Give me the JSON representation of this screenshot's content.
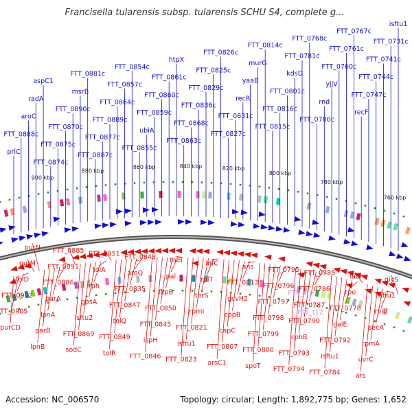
{
  "title": "Francisella tularensis subsp. tularensis SCHU S4, complete g...",
  "accession": "Accession: NC_006570",
  "summary": "Topology: circular; Length: 1,892,775 bp; Genes: 1,652",
  "colors": {
    "forward": "#1010cc",
    "reverse": "#dd1111",
    "rna": "#dd88dd",
    "backbone": "#777777",
    "tick": "#228822"
  },
  "scale_labels": [
    "760 kbp",
    "780 kbp",
    "800 kbp",
    "820 kbp",
    "840 kbp",
    "860 kbp",
    "880 kbp",
    "900 kbp"
  ],
  "forward_genes": [
    "isftu1",
    "FTT_0731c",
    "FTT_0741c",
    "FTT_0744c",
    "FTT_0747c",
    "recF",
    "FTT_0767c",
    "FTT_0761c",
    "FTT_0760c",
    "yjjV",
    "rnd",
    "FTT_0780c",
    "FTT_0768c",
    "FTT_0781c",
    "kdsD",
    "FTT_0801c",
    "FTT_0816c",
    "FTT_0815c",
    "FTT_0814c",
    "murG",
    "yaaB",
    "recR",
    "FTT_0831c",
    "FTT_0827c",
    "FTT_0826c",
    "FTT_0825c",
    "FTT_0829c",
    "FTT_0836c",
    "FTT_0868c",
    "FTT_0863c",
    "htpX",
    "FTT_0861c",
    "FTT_0860c",
    "FTT_0859c",
    "ubiA",
    "FTT_0855c",
    "FTT_0854c",
    "FTT_0857c",
    "FTT_0864c",
    "FTT_0889c",
    "FTT_0877c",
    "FTT_0887c",
    "FTT_0881c",
    "msrB",
    "FTT_0890c",
    "FTT_0870c",
    "FTT_0875c",
    "FTT_0874c",
    "aspC1",
    "radA",
    "aroC",
    "FTT_0888c",
    "prlC"
  ],
  "reverse_genes": [
    "glyS",
    "isftu1",
    "rplU",
    "secA",
    "rpmA",
    "uvrC",
    "ars",
    "fabI",
    "rpe",
    "FTT_0778",
    "galE",
    "FTT_0792",
    "isftu1",
    "FTT_0784",
    "FTT_0785",
    "FTT_0786",
    "FTT_0787",
    "FTT_0790",
    "cphB",
    "FTT_0793",
    "FTT_0794",
    "FTT_0795",
    "FTT_0796",
    "FTT_0797",
    "FTT_0798",
    "FTT_0799",
    "FTT_0800",
    "spoT",
    "ans",
    "FTT_0813",
    "gcvH2",
    "capB",
    "capC",
    "FTT_0807",
    "arsC1",
    "infC",
    "rplT",
    "thrS",
    "rpmI",
    "FTT_0821",
    "isftu1",
    "FTT_0823",
    "tolB",
    "pal",
    "fkpB",
    "FTT_0850",
    "FTT_0845",
    "ispH",
    "FTT_0846",
    "FTT_0848",
    "aroQ",
    "FTT_0835",
    "FTT_0847",
    "tolQ",
    "FTT_0849",
    "tolR",
    "FTT_0851",
    "tolA",
    "rph",
    "gpsA",
    "isftu2",
    "FTT_0869",
    "sodC",
    "FTT_0885",
    "FTT_0891",
    "FTT_0886",
    "parA",
    "lpnA",
    "parB",
    "lpnB",
    "purN",
    "purM",
    "folD",
    "FTT_0902",
    "FTT_0905",
    "purCD"
  ],
  "rna_genes": [
    "FTT_t11",
    "FTT_t12"
  ]
}
